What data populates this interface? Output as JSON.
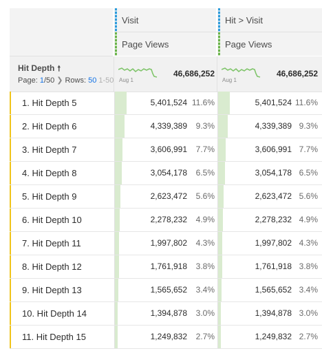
{
  "columns": [
    {
      "segment": "Visit",
      "metric": "Page Views",
      "total": "46,686,252",
      "spark_label": "Aug 1"
    },
    {
      "segment": "Hit > Visit",
      "metric": "Page Views",
      "total": "46,686,252",
      "spark_label": "Aug 1"
    }
  ],
  "dimension": {
    "title": "Hit Depth",
    "sort_icon": "arrow-up-icon",
    "pager": {
      "page_label": "Page:",
      "page_current": "1",
      "page_total": "/50",
      "next_icon": "chevron-right-icon",
      "rows_label": "Rows:",
      "rows_value": "50",
      "range": "1-50"
    }
  },
  "rows": [
    {
      "label": "1. Hit Depth 5",
      "value": "5,401,524",
      "pct": "11.6%",
      "share": 0.116
    },
    {
      "label": "2. Hit Depth 6",
      "value": "4,339,389",
      "pct": "9.3%",
      "share": 0.093
    },
    {
      "label": "3. Hit Depth 7",
      "value": "3,606,991",
      "pct": "7.7%",
      "share": 0.077
    },
    {
      "label": "4. Hit Depth 8",
      "value": "3,054,178",
      "pct": "6.5%",
      "share": 0.065
    },
    {
      "label": "5. Hit Depth 9",
      "value": "2,623,472",
      "pct": "5.6%",
      "share": 0.056
    },
    {
      "label": "6. Hit Depth 10",
      "value": "2,278,232",
      "pct": "4.9%",
      "share": 0.049
    },
    {
      "label": "7. Hit Depth 11",
      "value": "1,997,802",
      "pct": "4.3%",
      "share": 0.043
    },
    {
      "label": "8. Hit Depth 12",
      "value": "1,761,918",
      "pct": "3.8%",
      "share": 0.038
    },
    {
      "label": "9. Hit Depth 13",
      "value": "1,565,652",
      "pct": "3.4%",
      "share": 0.034
    },
    {
      "label": "10. Hit Depth 14",
      "value": "1,394,878",
      "pct": "3.0%",
      "share": 0.03
    },
    {
      "label": "11. Hit Depth 15",
      "value": "1,249,832",
      "pct": "2.7%",
      "share": 0.027
    }
  ],
  "colors": {
    "segment_bar": "#2d9cdb",
    "metric_bar": "#6ab44a",
    "row_marker": "#f0c419",
    "fill": "#d9ebcf",
    "link": "#1473e6"
  }
}
